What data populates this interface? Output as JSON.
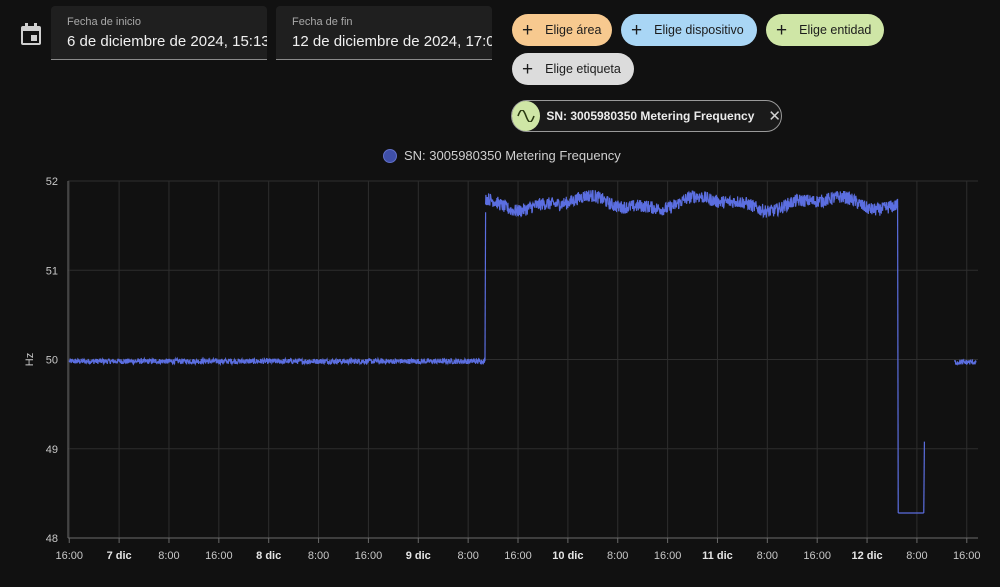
{
  "date_range": {
    "start_label": "Fecha de inicio",
    "start_value": "6 de diciembre de 2024, 15:13",
    "end_label": "Fecha de fin",
    "end_value": "12 de diciembre de 2024, 17:0"
  },
  "pickers": {
    "area": {
      "label": "Elige área",
      "color": "#f7c98f"
    },
    "device": {
      "label": "Elige dispositivo",
      "color": "#a9d6f5"
    },
    "entity": {
      "label": "Elige entidad",
      "color": "#cfe6a6"
    },
    "label": {
      "label": "Elige etiqueta",
      "color": "#dcdcdc"
    }
  },
  "selected_entity": {
    "label": "SN: 3005980350 Metering Frequency",
    "icon": "sine-wave-icon",
    "remove_icon": "close-icon"
  },
  "chart_data": {
    "type": "line",
    "legend": "SN: 3005980350 Metering Frequency",
    "series_color": "#5b6ee0",
    "ylabel": "Hz",
    "ylim": [
      48,
      52
    ],
    "yticks": [
      "52",
      "51",
      "50",
      "49",
      "48"
    ],
    "grid": true,
    "x_range_hours": [
      -0.2,
      145.8
    ],
    "x_tick_labels": [
      {
        "label": "16:00",
        "bold": false
      },
      {
        "label": "7 dic",
        "bold": true
      },
      {
        "label": "8:00",
        "bold": false
      },
      {
        "label": "16:00",
        "bold": false
      },
      {
        "label": "8 dic",
        "bold": true
      },
      {
        "label": "8:00",
        "bold": false
      },
      {
        "label": "16:00",
        "bold": false
      },
      {
        "label": "9 dic",
        "bold": true
      },
      {
        "label": "8:00",
        "bold": false
      },
      {
        "label": "16:00",
        "bold": false
      },
      {
        "label": "10 dic",
        "bold": true
      },
      {
        "label": "8:00",
        "bold": false
      },
      {
        "label": "16:00",
        "bold": false
      },
      {
        "label": "11 dic",
        "bold": true
      },
      {
        "label": "8:00",
        "bold": false
      },
      {
        "label": "16:00",
        "bold": false
      },
      {
        "label": "12 dic",
        "bold": true
      },
      {
        "label": "8:00",
        "bold": false
      },
      {
        "label": "16:00",
        "bold": false
      }
    ],
    "segments": [
      {
        "x": [
          0,
          66.7
        ],
        "y": 49.98,
        "noise": 0.05
      },
      {
        "x": [
          66.7,
          66.8
        ],
        "y": [
          49.98,
          51.65
        ]
      },
      {
        "x": [
          66.8,
          132.9
        ],
        "y": 51.75,
        "noise": 0.12
      },
      {
        "x": [
          132.9,
          133.0
        ],
        "y": [
          51.8,
          48.28
        ]
      },
      {
        "x": [
          133.0,
          137.1
        ],
        "y": 48.28
      },
      {
        "x": [
          137.1,
          137.2
        ],
        "y": [
          48.28,
          49.08
        ]
      },
      {
        "x": [
          142.0,
          145.5
        ],
        "y": 49.97,
        "noise": 0.05
      }
    ]
  }
}
